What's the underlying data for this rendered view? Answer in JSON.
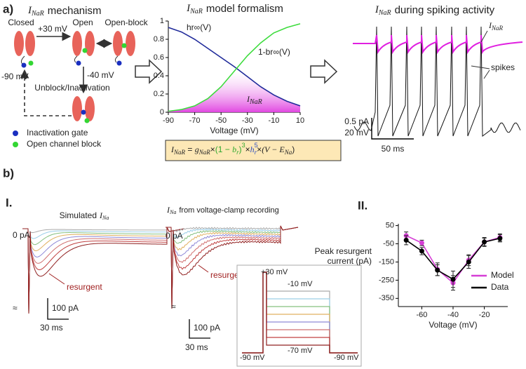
{
  "figure": {
    "panel_a": {
      "label": "a)",
      "mechanism": {
        "title": {
          "symbol": "I",
          "subscript": "NaR",
          "text": "mechanism"
        },
        "states": {
          "closed": "Closed",
          "open": "Open",
          "open_block": "Open-block",
          "unblock": "Unblock/Inactivation"
        },
        "voltages": {
          "depolarize": "+30 mV",
          "hyperpolarize": "-90 mV",
          "repolarize": "-40 mV"
        },
        "legend": [
          "Inactivation gate",
          "Open channel block"
        ]
      },
      "equation": {
        "lhs": "I",
        "lhs_sub": "NaR",
        "equals": " = ",
        "g": "g",
        "g_sub": "NaR",
        "times1": "×",
        "open": "(1 − ",
        "b": "b",
        "b_sub": "r",
        "close": ")",
        "b_pow": "3",
        "times2": "×",
        "h": "h",
        "h_pow": "5",
        "h_sub": "r",
        "times3": "×",
        "tail": "(V − E",
        "e_sub": "Na",
        "end": ")"
      },
      "spiking": {
        "title": {
          "symbol": "I",
          "subscript": "NaR",
          "text": "during spiking activity"
        },
        "current_label": {
          "symbol": "I",
          "subscript": "NaR"
        },
        "spikes_label": "spikes",
        "scale": {
          "current": "0.5 pA",
          "voltage": "20 mV",
          "time": "50 ms"
        }
      }
    },
    "panel_b": {
      "label": "b)",
      "part1": "I.",
      "part2": "II.",
      "simulated": {
        "title": {
          "text": "Simulated",
          "symbol": "I",
          "subscript": "Na"
        },
        "zero": "0 pA",
        "resurgent": "resurgent",
        "break": "≈",
        "scale": {
          "current": "100 pA",
          "time": "30 ms"
        }
      },
      "recorded": {
        "title": {
          "symbol": "I",
          "subscript": "Na",
          "text": "from voltage-clamp recording"
        },
        "zero": "0 pA",
        "resurgent": "resurgent",
        "break": "≈",
        "scale": {
          "current": "100 pA",
          "time": "30 ms"
        },
        "protocol": {
          "step": "+30 mV",
          "top": "-10 mV",
          "bottom": "-70 mV",
          "hold_left": "-90 mV",
          "hold_right": "-90 mV"
        }
      }
    }
  },
  "chart_data": [
    {
      "type": "line",
      "title": {
        "symbol": "I",
        "subscript": "NaR",
        "text": "model formalism"
      },
      "xlabel": "Voltage (mV)",
      "x": [
        -90,
        -80,
        -70,
        -60,
        -50,
        -40,
        -30,
        -20,
        -10,
        0,
        10
      ],
      "series": [
        {
          "name": "hr∞(V)",
          "color": "#1f2a9a",
          "values": [
            0.93,
            0.88,
            0.8,
            0.7,
            0.6,
            0.5,
            0.39,
            0.28,
            0.19,
            0.12,
            0.07
          ]
        },
        {
          "name": "1-br∞(V)",
          "color": "#3ddc3d",
          "values": [
            0.01,
            0.03,
            0.07,
            0.15,
            0.28,
            0.45,
            0.62,
            0.76,
            0.87,
            0.93,
            0.97
          ]
        }
      ],
      "xlim": [
        -90,
        10
      ],
      "ylim": [
        0,
        1
      ],
      "xticks": [
        -90,
        -70,
        -50,
        -30,
        -10,
        10
      ],
      "yticks": [
        0,
        0.2,
        0.4,
        0.6,
        0.8,
        1
      ],
      "annotation": {
        "symbol": "I",
        "subscript": "NaR"
      },
      "shade_color": "#e040e0"
    },
    {
      "type": "line",
      "xlabel": "Voltage (mV)",
      "ylabel": [
        "Peak resurgent",
        "current (pA)"
      ],
      "x": [
        -70,
        -60,
        -50,
        -40,
        -30,
        -20,
        -10
      ],
      "series": [
        {
          "name": "Model",
          "color": "#d63fd6",
          "marker": "circle",
          "values": [
            -5,
            -45,
            -190,
            -265,
            -140,
            -40,
            -15
          ],
          "errors": [
            20,
            15,
            35,
            40,
            30,
            20,
            20
          ]
        },
        {
          "name": "Data",
          "color": "#000000",
          "marker": "circle",
          "values": [
            -30,
            -90,
            -195,
            -245,
            -150,
            -40,
            -20
          ],
          "errors": [
            25,
            20,
            30,
            45,
            35,
            25,
            20
          ]
        }
      ],
      "xlim": [
        -75,
        -5
      ],
      "ylim": [
        -395,
        60
      ],
      "xticks": [
        -60,
        -40,
        -20
      ],
      "yticks": [
        50,
        -50,
        -150,
        -250,
        -350
      ],
      "legend": "lower right"
    }
  ]
}
